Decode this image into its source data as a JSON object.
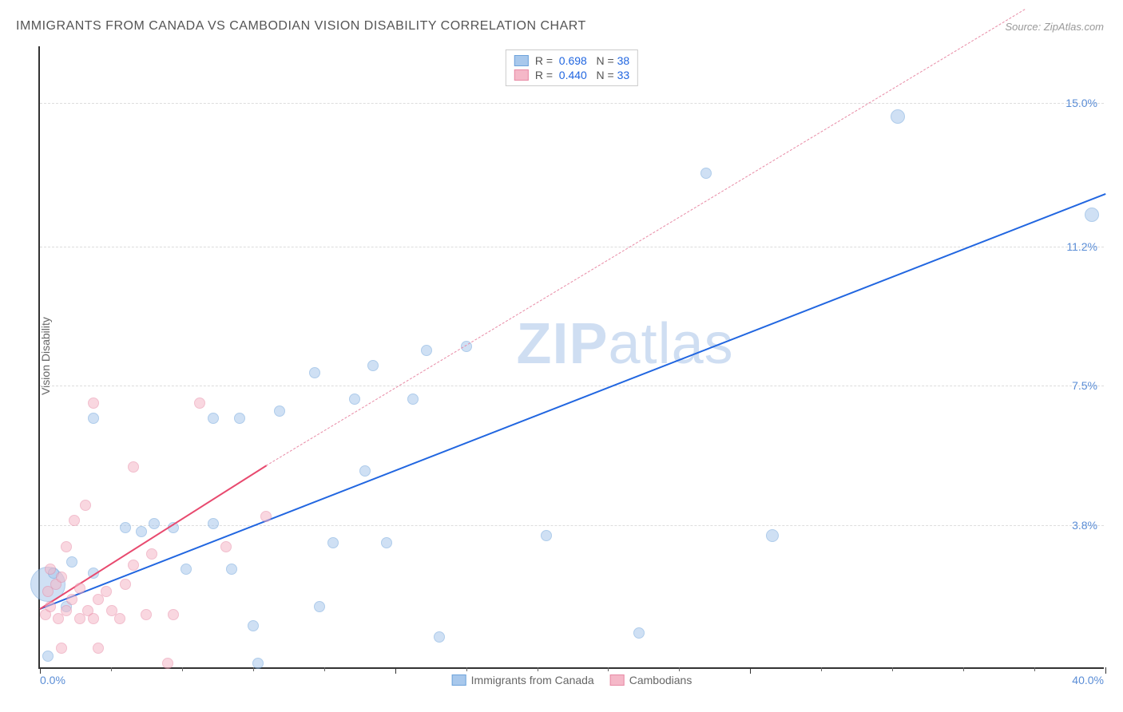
{
  "title": "IMMIGRANTS FROM CANADA VS CAMBODIAN VISION DISABILITY CORRELATION CHART",
  "source_label": "Source: ZipAtlas.com",
  "ylabel": "Vision Disability",
  "watermark": "ZIPatlas",
  "chart": {
    "type": "scatter",
    "xlim": [
      0,
      40
    ],
    "ylim": [
      0,
      16.5
    ],
    "x_min_label": "0.0%",
    "x_max_label": "40.0%",
    "y_gridlines": [
      3.8,
      7.5,
      11.2,
      15.0
    ],
    "y_grid_labels": [
      "3.8%",
      "7.5%",
      "11.2%",
      "15.0%"
    ],
    "x_major_ticks": [
      0,
      13.33,
      26.67,
      40
    ],
    "x_minor_ticks": [
      2.67,
      5.33,
      8,
      10.67,
      16,
      18.67,
      21.33,
      24,
      29.33,
      32,
      34.67,
      37.33
    ],
    "background_color": "#ffffff",
    "grid_color": "#dddddd",
    "axis_color": "#333333",
    "series": [
      {
        "name": "Immigrants from Canada",
        "color_fill": "#a8c8ec",
        "color_stroke": "#6ea3db",
        "fill_opacity": 0.55,
        "R": "0.698",
        "N": "38",
        "trend_color": "#2166e0",
        "trend_start": {
          "x": 0,
          "y": 1.6
        },
        "trend_end": {
          "x": 40,
          "y": 12.6
        },
        "dashed_extension": null,
        "points": [
          {
            "x": 0.3,
            "y": 2.2,
            "r": 22
          },
          {
            "x": 0.3,
            "y": 0.3,
            "r": 7
          },
          {
            "x": 0.5,
            "y": 2.5,
            "r": 7
          },
          {
            "x": 1.0,
            "y": 1.6,
            "r": 7
          },
          {
            "x": 1.2,
            "y": 2.8,
            "r": 7
          },
          {
            "x": 2.0,
            "y": 2.5,
            "r": 7
          },
          {
            "x": 2.0,
            "y": 6.6,
            "r": 7
          },
          {
            "x": 3.2,
            "y": 3.7,
            "r": 7
          },
          {
            "x": 3.8,
            "y": 3.6,
            "r": 7
          },
          {
            "x": 4.3,
            "y": 3.8,
            "r": 7
          },
          {
            "x": 5.0,
            "y": 3.7,
            "r": 7
          },
          {
            "x": 5.5,
            "y": 2.6,
            "r": 7
          },
          {
            "x": 6.5,
            "y": 3.8,
            "r": 7
          },
          {
            "x": 6.5,
            "y": 6.6,
            "r": 7
          },
          {
            "x": 7.2,
            "y": 2.6,
            "r": 7
          },
          {
            "x": 7.5,
            "y": 6.6,
            "r": 7
          },
          {
            "x": 8.0,
            "y": 1.1,
            "r": 7
          },
          {
            "x": 8.2,
            "y": 0.1,
            "r": 7
          },
          {
            "x": 9.0,
            "y": 6.8,
            "r": 7
          },
          {
            "x": 10.3,
            "y": 7.8,
            "r": 7
          },
          {
            "x": 10.5,
            "y": 1.6,
            "r": 7
          },
          {
            "x": 11.0,
            "y": 3.3,
            "r": 7
          },
          {
            "x": 11.8,
            "y": 7.1,
            "r": 7
          },
          {
            "x": 12.2,
            "y": 5.2,
            "r": 7
          },
          {
            "x": 12.5,
            "y": 8.0,
            "r": 7
          },
          {
            "x": 13.0,
            "y": 3.3,
            "r": 7
          },
          {
            "x": 14.0,
            "y": 7.1,
            "r": 7
          },
          {
            "x": 14.5,
            "y": 8.4,
            "r": 7
          },
          {
            "x": 15.0,
            "y": 0.8,
            "r": 7
          },
          {
            "x": 16.0,
            "y": 8.5,
            "r": 7
          },
          {
            "x": 19.0,
            "y": 3.5,
            "r": 7
          },
          {
            "x": 22.5,
            "y": 0.9,
            "r": 7
          },
          {
            "x": 25.0,
            "y": 13.1,
            "r": 7
          },
          {
            "x": 27.5,
            "y": 3.5,
            "r": 8
          },
          {
            "x": 32.2,
            "y": 14.6,
            "r": 9
          },
          {
            "x": 39.5,
            "y": 12.0,
            "r": 9
          }
        ]
      },
      {
        "name": "Cambodians",
        "color_fill": "#f5b8c8",
        "color_stroke": "#e88aa5",
        "fill_opacity": 0.55,
        "R": "0.440",
        "N": "33",
        "trend_color": "#e84a6f",
        "trend_start": {
          "x": 0,
          "y": 1.6
        },
        "trend_end": {
          "x": 8.5,
          "y": 5.4
        },
        "dashed_extension": {
          "start": {
            "x": 8.5,
            "y": 5.4
          },
          "end": {
            "x": 37,
            "y": 17.5
          }
        },
        "points": [
          {
            "x": 0.2,
            "y": 1.4,
            "r": 7
          },
          {
            "x": 0.3,
            "y": 2.0,
            "r": 7
          },
          {
            "x": 0.4,
            "y": 2.6,
            "r": 7
          },
          {
            "x": 0.4,
            "y": 1.6,
            "r": 7
          },
          {
            "x": 0.6,
            "y": 2.2,
            "r": 7
          },
          {
            "x": 0.7,
            "y": 1.3,
            "r": 7
          },
          {
            "x": 0.8,
            "y": 2.4,
            "r": 7
          },
          {
            "x": 0.8,
            "y": 0.5,
            "r": 7
          },
          {
            "x": 1.0,
            "y": 3.2,
            "r": 7
          },
          {
            "x": 1.0,
            "y": 1.5,
            "r": 7
          },
          {
            "x": 1.2,
            "y": 1.8,
            "r": 7
          },
          {
            "x": 1.3,
            "y": 3.9,
            "r": 7
          },
          {
            "x": 1.5,
            "y": 2.1,
            "r": 7
          },
          {
            "x": 1.5,
            "y": 1.3,
            "r": 7
          },
          {
            "x": 1.7,
            "y": 4.3,
            "r": 7
          },
          {
            "x": 1.8,
            "y": 1.5,
            "r": 7
          },
          {
            "x": 2.0,
            "y": 7.0,
            "r": 7
          },
          {
            "x": 2.0,
            "y": 1.3,
            "r": 7
          },
          {
            "x": 2.2,
            "y": 1.8,
            "r": 7
          },
          {
            "x": 2.2,
            "y": 0.5,
            "r": 7
          },
          {
            "x": 2.5,
            "y": 2.0,
            "r": 7
          },
          {
            "x": 2.7,
            "y": 1.5,
            "r": 7
          },
          {
            "x": 3.0,
            "y": 1.3,
            "r": 7
          },
          {
            "x": 3.2,
            "y": 2.2,
            "r": 7
          },
          {
            "x": 3.5,
            "y": 5.3,
            "r": 7
          },
          {
            "x": 3.5,
            "y": 2.7,
            "r": 7
          },
          {
            "x": 4.0,
            "y": 1.4,
            "r": 7
          },
          {
            "x": 4.2,
            "y": 3.0,
            "r": 7
          },
          {
            "x": 4.8,
            "y": 0.1,
            "r": 7
          },
          {
            "x": 5.0,
            "y": 1.4,
            "r": 7
          },
          {
            "x": 6.0,
            "y": 7.0,
            "r": 7
          },
          {
            "x": 7.0,
            "y": 3.2,
            "r": 7
          },
          {
            "x": 8.5,
            "y": 4.0,
            "r": 7
          }
        ]
      }
    ]
  },
  "stat_legend_color": "#2166e0",
  "ytick_color": "#5a8dd6",
  "xtick_color": "#5a8dd6"
}
